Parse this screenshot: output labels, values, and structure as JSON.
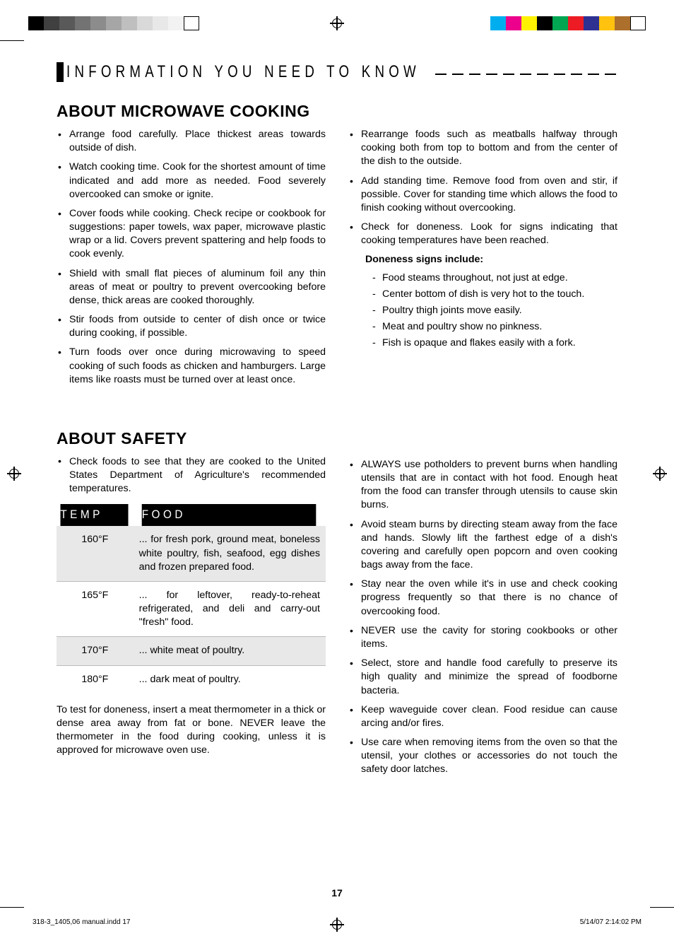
{
  "registration": {
    "left_bar_colors": [
      "#000000",
      "#404040",
      "#595959",
      "#737373",
      "#8c8c8c",
      "#a6a6a6",
      "#bfbfbf",
      "#d9d9d9",
      "#e8e8e8",
      "#f2f2f2",
      "#ffffff"
    ],
    "right_bar_colors": [
      "#00aeef",
      "#ec008c",
      "#fff200",
      "#000000",
      "#00a651",
      "#ed1c24",
      "#2e3192",
      "#ffc20e",
      "#ac6f2c",
      "#ffffff"
    ]
  },
  "section_header": "INFORMATION YOU NEED TO KNOW",
  "cooking": {
    "heading": "ABOUT MICROWAVE COOKING",
    "left": [
      "Arrange food carefully. Place thickest areas towards outside of dish.",
      "Watch cooking time. Cook for the shortest amount of time indicated and add more as needed. Food severely overcooked can smoke or ignite.",
      "Cover foods while cooking. Check recipe or cookbook for suggestions: paper towels, wax paper, microwave plastic wrap or a lid. Covers prevent spattering and help foods to cook evenly.",
      "Shield with small flat pieces of aluminum foil any thin areas of meat or poultry to prevent overcooking before dense, thick areas are cooked thoroughly.",
      "Stir foods from outside to center of dish once or twice during cooking, if possible.",
      "Turn foods over once during microwaving to speed cooking of such foods as chicken and hamburgers. Large items like roasts must be turned over at least once."
    ],
    "right": [
      "Rearrange foods such as meatballs halfway through cooking both from top to bottom and from the center of the dish to the outside.",
      "Add standing time. Remove food from oven and stir, if possible. Cover for standing time which allows the food to finish cooking without overcooking.",
      "Check for doneness. Look for signs indicating that cooking temperatures have been reached."
    ],
    "doneness_label": "Doneness signs include:",
    "doneness": [
      "Food steams throughout, not just at edge.",
      "Center bottom of dish is very hot to the touch.",
      "Poultry thigh joints move easily.",
      "Meat and poultry show no pinkness.",
      "Fish is opaque and flakes easily with a fork."
    ]
  },
  "safety": {
    "heading": "ABOUT SAFETY",
    "intro": "Check foods to see that they are cooked to the United States Department of Agriculture's recommended temperatures.",
    "table": {
      "headers": [
        "TEMP",
        "FOOD"
      ],
      "rows": [
        {
          "temp": "160°F",
          "food": "... for fresh pork, ground meat, boneless white poultry, fish, seafood, egg dishes and frozen prepared food.",
          "alt": true
        },
        {
          "temp": "165°F",
          "food": "... for leftover, ready-to-reheat refrigerated, and deli and carry-out \"fresh\" food.",
          "alt": false
        },
        {
          "temp": "170°F",
          "food": "... white meat of poultry.",
          "alt": true
        },
        {
          "temp": "180°F",
          "food": "... dark meat of poultry.",
          "alt": false
        }
      ]
    },
    "after_table": "To test for doneness, insert a meat thermometer in a  thick or dense area away from fat or bone. NEVER leave the thermometer in the food during cooking, unless it is approved for microwave oven use.",
    "right": [
      "ALWAYS use potholders to prevent burns when handling utensils that are in contact with hot food. Enough heat from the food can transfer through utensils to cause skin burns.",
      "Avoid steam burns by directing steam away from the face and hands. Slowly lift the farthest edge of a dish's covering and carefully open popcorn and oven cooking bags away from the face.",
      "Stay near the oven while it's in use and check cooking progress frequently so that there is no chance of overcooking food.",
      "NEVER use the cavity for storing cookbooks or other items.",
      "Select, store and handle food carefully to preserve its high quality and minimize the spread of foodborne bacteria.",
      "Keep waveguide cover clean. Food residue can cause arcing and/or fires.",
      "Use care when removing items from the oven so that the utensil, your clothes or accessories do not touch the safety door latches."
    ]
  },
  "page_number": "17",
  "footer_left": "318-3_1405,06 manual.indd   17",
  "footer_right": "5/14/07   2:14:02 PM"
}
